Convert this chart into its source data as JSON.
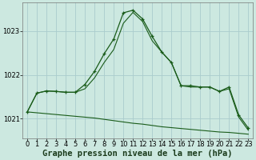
{
  "title": "Graphe pression niveau de la mer (hPa)",
  "bg_color": "#cce8e0",
  "grid_color": "#aacccc",
  "line_color": "#1a5c1a",
  "ylabel_values": [
    1021,
    1022,
    1023
  ],
  "xlim": [
    -0.5,
    23.5
  ],
  "ylim": [
    1020.55,
    1023.65
  ],
  "xticks": [
    0,
    1,
    2,
    3,
    4,
    5,
    6,
    7,
    8,
    9,
    10,
    11,
    12,
    13,
    14,
    15,
    16,
    17,
    18,
    19,
    20,
    21,
    22,
    23
  ],
  "series": [
    {
      "x": [
        0,
        1,
        2,
        3,
        4,
        5,
        6,
        7,
        8,
        9,
        10,
        11,
        12,
        13,
        14,
        15,
        16,
        17,
        18,
        19,
        20,
        21,
        22,
        23
      ],
      "y": [
        1021.15,
        1021.58,
        1021.63,
        1021.62,
        1021.6,
        1021.6,
        1021.78,
        1022.08,
        1022.48,
        1022.82,
        1023.42,
        1023.48,
        1023.28,
        1022.88,
        1022.52,
        1022.28,
        1021.75,
        1021.75,
        1021.72,
        1021.72,
        1021.62,
        1021.72,
        1021.08,
        1020.78
      ]
    },
    {
      "x": [
        0,
        1,
        2,
        3,
        4,
        5,
        6,
        7,
        8,
        9,
        10,
        11,
        12,
        13,
        14,
        15,
        16,
        17,
        18,
        19,
        20,
        21,
        22,
        23
      ],
      "y": [
        1021.15,
        1021.58,
        1021.63,
        1021.62,
        1021.6,
        1021.6,
        1021.68,
        1021.93,
        1022.28,
        1022.58,
        1023.18,
        1023.43,
        1023.22,
        1022.78,
        1022.52,
        1022.28,
        1021.75,
        1021.72,
        1021.72,
        1021.72,
        1021.62,
        1021.68,
        1021.03,
        1020.73
      ]
    },
    {
      "x": [
        0,
        1,
        2,
        3,
        4,
        5,
        6,
        7,
        8,
        9,
        10,
        11,
        12,
        13,
        14,
        15,
        16,
        17,
        18,
        19,
        20,
        21,
        22,
        23
      ],
      "y": [
        1021.15,
        1021.13,
        1021.11,
        1021.09,
        1021.07,
        1021.05,
        1021.03,
        1021.01,
        1020.98,
        1020.95,
        1020.92,
        1020.89,
        1020.87,
        1020.84,
        1020.81,
        1020.79,
        1020.77,
        1020.75,
        1020.73,
        1020.71,
        1020.69,
        1020.68,
        1020.66,
        1020.64
      ]
    }
  ],
  "title_fontsize": 7.5,
  "tick_fontsize": 6,
  "figsize": [
    3.2,
    2.0
  ],
  "dpi": 100
}
